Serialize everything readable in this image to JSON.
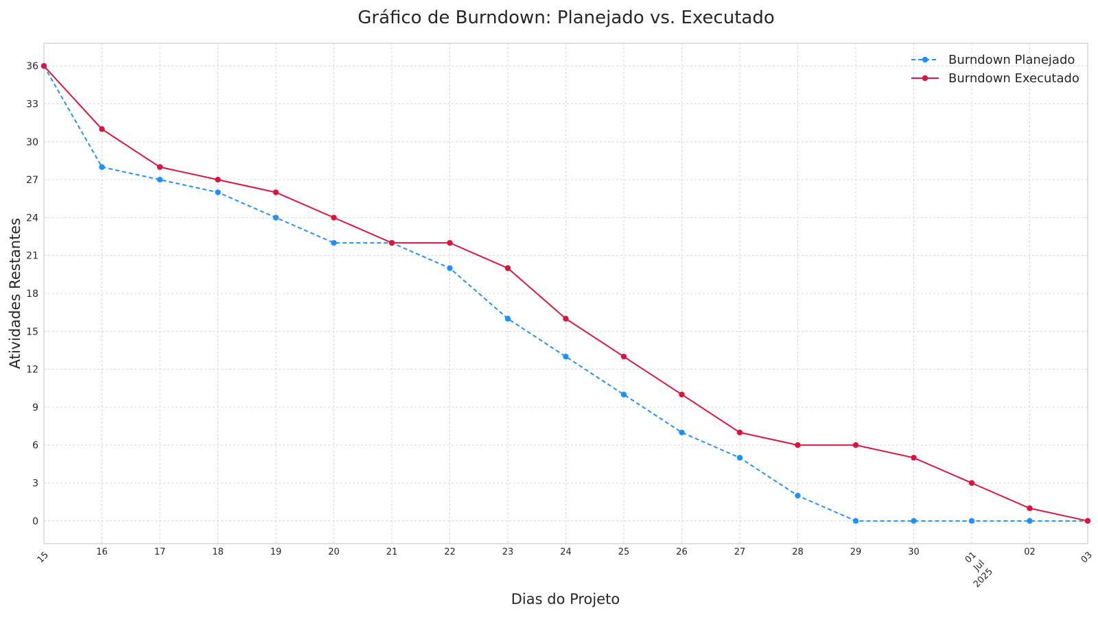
{
  "chart_data": {
    "type": "line",
    "title": "Gráfico de Burndown: Planejado vs. Executado",
    "xlabel": "Dias do Projeto",
    "ylabel": "Atividades Restantes",
    "x": [
      "2025-06-15",
      "2025-06-16",
      "2025-06-17",
      "2025-06-18",
      "2025-06-19",
      "2025-06-20",
      "2025-06-21",
      "2025-06-22",
      "2025-06-23",
      "2025-06-24",
      "2025-06-25",
      "2025-06-26",
      "2025-06-27",
      "2025-06-28",
      "2025-06-29",
      "2025-06-30",
      "2025-07-01",
      "2025-07-02",
      "2025-07-03"
    ],
    "x_tick_labels": [
      "15",
      "16",
      "17",
      "18",
      "19",
      "20",
      "21",
      "22",
      "23",
      "24",
      "25",
      "26",
      "27",
      "28",
      "29",
      "30",
      "01\nJul\n2025",
      "02",
      "03"
    ],
    "xlim": [
      "2025-06-15",
      "2025-07-03"
    ],
    "ylim": [
      -1.8,
      37.8
    ],
    "y_ticks": [
      0,
      3,
      6,
      9,
      12,
      15,
      18,
      21,
      24,
      27,
      30,
      33,
      36
    ],
    "grid": true,
    "legend_position": "top-right",
    "series": [
      {
        "name": "Burndown Planejado",
        "color": "#1e90ff",
        "style": "dashed",
        "marker": "circle",
        "values": [
          36,
          28,
          27,
          26,
          24,
          22,
          22,
          20,
          16,
          13,
          10,
          7,
          5,
          2,
          0,
          0,
          0,
          0,
          0
        ]
      },
      {
        "name": "Burndown Executado",
        "color": "#dc143c",
        "style": "solid",
        "marker": "circle",
        "values": [
          36,
          31,
          28,
          27,
          26,
          24,
          22,
          22,
          20,
          16,
          13,
          10,
          7,
          6,
          6,
          5,
          3,
          1,
          0
        ]
      }
    ]
  }
}
